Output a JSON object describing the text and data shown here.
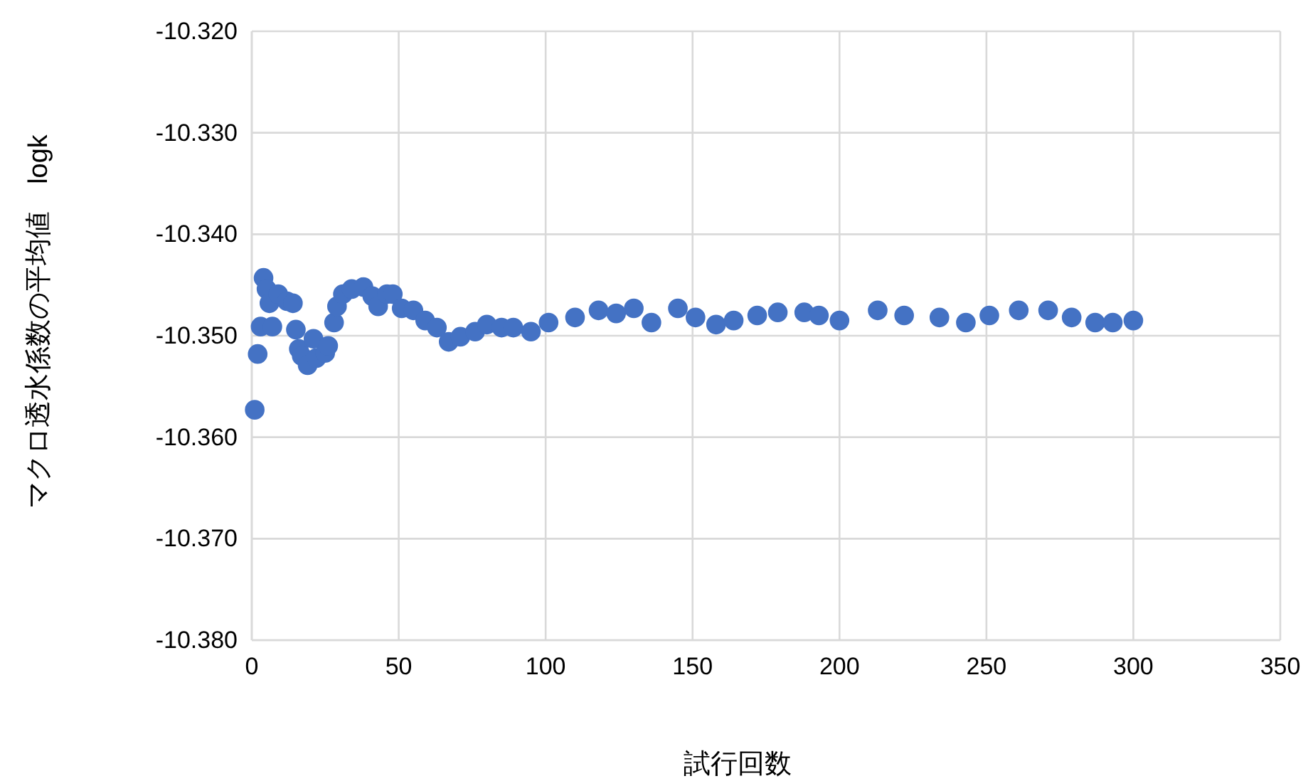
{
  "chart_data": {
    "type": "scatter",
    "xlabel": "試行回数",
    "ylabel": "マクロ透水係数の平均値　logk",
    "xlim": [
      0,
      350
    ],
    "xticks": [
      0,
      50,
      100,
      150,
      200,
      250,
      300,
      350
    ],
    "ylim": [
      -10.38,
      -10.32
    ],
    "yticks": [
      {
        "value": -10.38,
        "label": "-10.380"
      },
      {
        "value": -10.37,
        "label": "-10.370"
      },
      {
        "value": -10.36,
        "label": "-10.360"
      },
      {
        "value": -10.35,
        "label": "-10.350"
      },
      {
        "value": -10.34,
        "label": "-10.340"
      },
      {
        "value": -10.33,
        "label": "-10.330"
      },
      {
        "value": -10.32,
        "label": "-10.320"
      }
    ],
    "grid": true,
    "marker": "circle",
    "series": [
      {
        "color": "#4472c4",
        "x": [
          1,
          2,
          3,
          4,
          5,
          6,
          7,
          9,
          12,
          14,
          15,
          16,
          17,
          19,
          21,
          22,
          25,
          26,
          28,
          29,
          31,
          34,
          38,
          41,
          43,
          46,
          48,
          51,
          55,
          59,
          63,
          67,
          71,
          76,
          80,
          85,
          89,
          95,
          101,
          110,
          118,
          124,
          130,
          136,
          145,
          151,
          158,
          164,
          172,
          179,
          188,
          193,
          200,
          213,
          222,
          234,
          243,
          251,
          261,
          271,
          279,
          287,
          293,
          300
        ],
        "values": [
          -10.3573,
          -10.3518,
          -10.3491,
          -10.3443,
          -10.3454,
          -10.3468,
          -10.3491,
          -10.3459,
          -10.3466,
          -10.3468,
          -10.3494,
          -10.3513,
          -10.352,
          -10.3529,
          -10.3503,
          -10.3522,
          -10.3517,
          -10.351,
          -10.3487,
          -10.3471,
          -10.3459,
          -10.3454,
          -10.3452,
          -10.3461,
          -10.3471,
          -10.3459,
          -10.3459,
          -10.3473,
          -10.3475,
          -10.3485,
          -10.3492,
          -10.3506,
          -10.3501,
          -10.3496,
          -10.3489,
          -10.3492,
          -10.3492,
          -10.3496,
          -10.3487,
          -10.3482,
          -10.3475,
          -10.3478,
          -10.3473,
          -10.3487,
          -10.3473,
          -10.3482,
          -10.3489,
          -10.3485,
          -10.348,
          -10.3477,
          -10.3477,
          -10.348,
          -10.3485,
          -10.3475,
          -10.348,
          -10.3482,
          -10.3487,
          -10.348,
          -10.3475,
          -10.3475,
          -10.3482,
          -10.3487,
          -10.3487,
          -10.3485
        ]
      }
    ]
  }
}
